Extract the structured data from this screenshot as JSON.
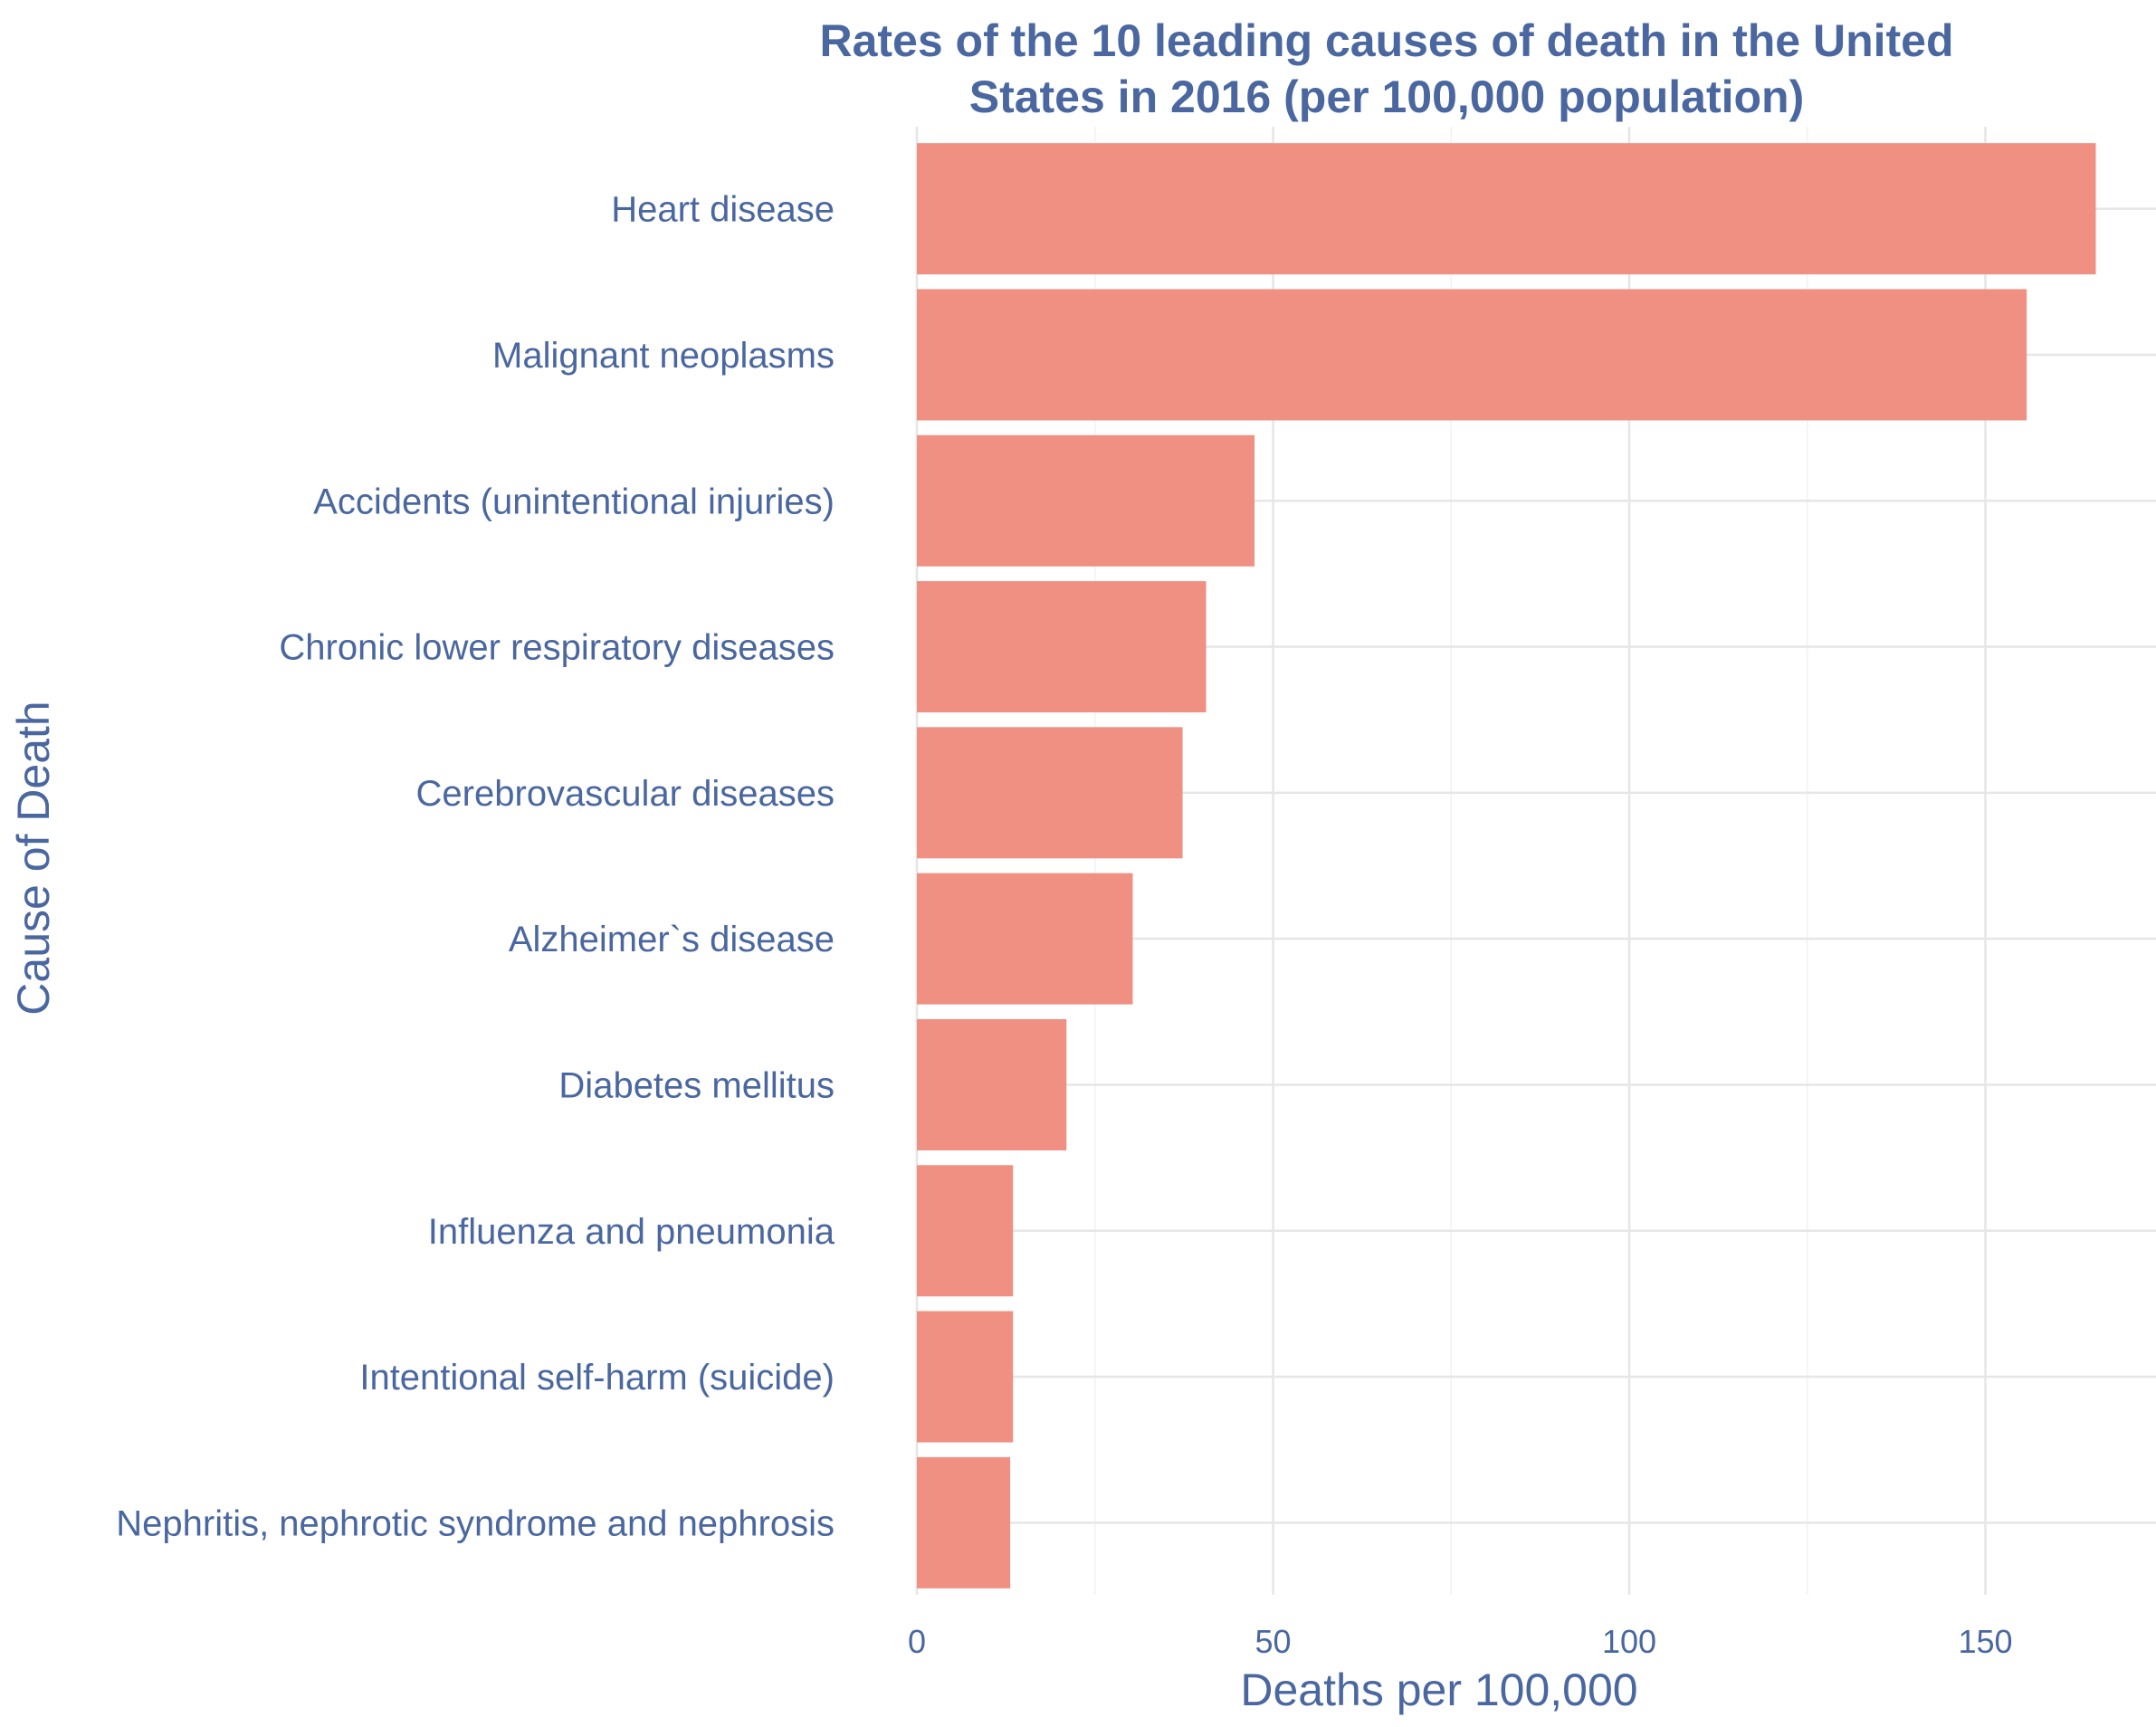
{
  "chart_data": {
    "type": "bar",
    "orientation": "horizontal",
    "title_lines": [
      "Rates of the 10 leading causes of death in the United",
      "States in 2016 (per 100,000 population)"
    ],
    "xlabel": "Deaths per 100,000",
    "ylabel": "Cause of Death",
    "xlim": [
      0,
      174
    ],
    "xticks": [
      0,
      50,
      100,
      150
    ],
    "grid": true,
    "categories": [
      "Heart disease",
      "Malignant neoplasms",
      "Accidents (unintentional injuries)",
      "Chronic lower respiratory diseases",
      "Cerebrovascular diseases",
      "Alzheimer`s disease",
      "Diabetes mellitus",
      "Influenza and pneumonia",
      "Intentional self-harm (suicide)",
      "Nephritis, nephrotic syndrome and nephrosis"
    ],
    "values": [
      165.5,
      155.8,
      47.4,
      40.6,
      37.3,
      30.3,
      21.0,
      13.5,
      13.5,
      13.1
    ]
  },
  "colors": {
    "bar": "#ef9083",
    "text": "#4a67a0",
    "grid_major": "#e6e6e6",
    "grid_minor": "#f2f2f2"
  }
}
